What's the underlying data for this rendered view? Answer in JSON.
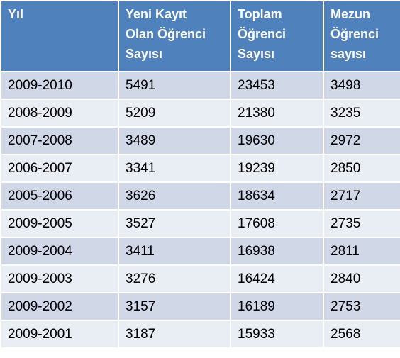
{
  "table": {
    "header": [
      [
        "Yıl"
      ],
      [
        "Yeni Kayıt",
        "Olan Öğrenci",
        "Sayısı"
      ],
      [
        "Toplam",
        "Öğrenci",
        "Sayısı"
      ],
      [
        "Mezun",
        "Öğrenci",
        "sayısı"
      ]
    ],
    "rows": [
      [
        "2009-2010",
        5491,
        23453,
        3498
      ],
      [
        "2008-2009",
        5209,
        21380,
        3235
      ],
      [
        "2007-2008",
        3489,
        19630,
        2972
      ],
      [
        "2006-2007",
        3341,
        19239,
        2850
      ],
      [
        "2005-2006",
        3626,
        18634,
        2717
      ],
      [
        "2009-2005",
        3527,
        17608,
        2735
      ],
      [
        "2009-2004",
        3411,
        16938,
        2811
      ],
      [
        "2009-2003",
        3276,
        16424,
        2840
      ],
      [
        "2009-2002",
        3157,
        16189,
        2753
      ],
      [
        "2009-2001",
        3187,
        15933,
        2568
      ]
    ]
  }
}
